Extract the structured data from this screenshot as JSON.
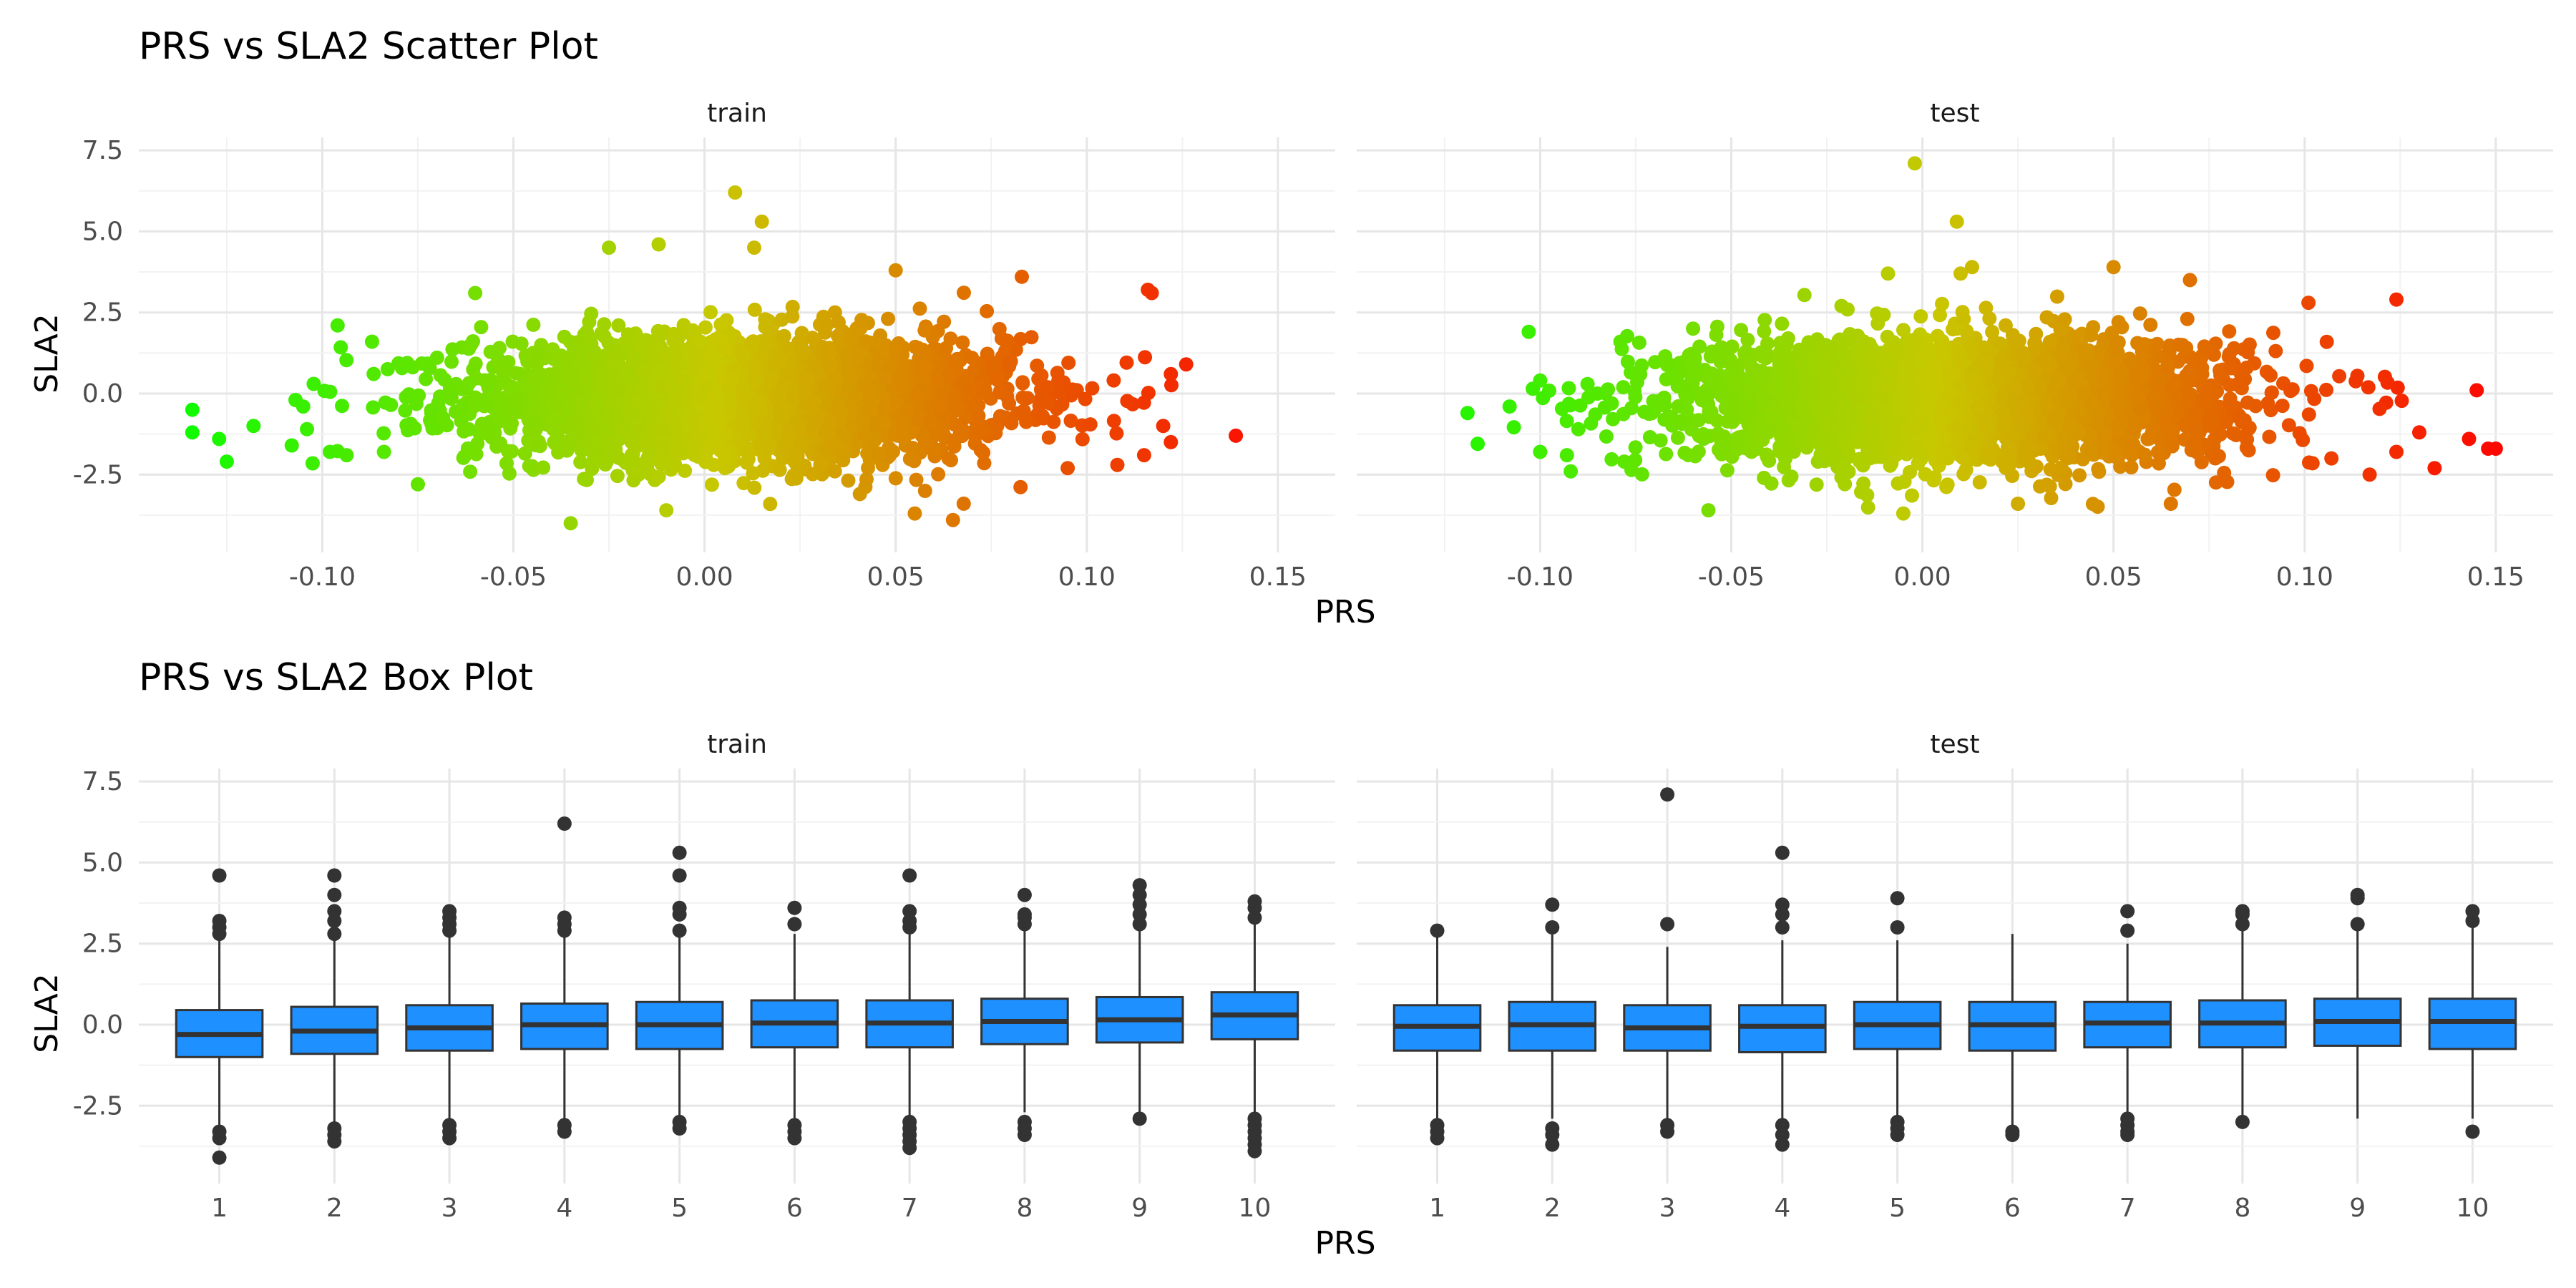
{
  "chart_data": [
    {
      "type": "scatter",
      "title": "PRS vs SLA2 Scatter Plot",
      "xlabel": "PRS",
      "ylabel": "SLA2",
      "facets": [
        "train",
        "test"
      ],
      "xlim": [
        -0.148,
        0.165
      ],
      "ylim": [
        -4.9,
        7.9
      ],
      "xticks": [
        -0.1,
        -0.05,
        0.0,
        0.05,
        0.1,
        0.15
      ],
      "xtick_labels": [
        "-0.10",
        "-0.05",
        "0.00",
        "0.05",
        "0.10",
        "0.15"
      ],
      "yticks": [
        -2.5,
        0.0,
        2.5,
        5.0,
        7.5
      ],
      "ytick_labels": [
        "-2.5",
        "0.0",
        "2.5",
        "5.0",
        "7.5"
      ],
      "grid": true,
      "color_scale": {
        "low": "#00ff00",
        "high": "#ff0000",
        "variable": "PRS"
      },
      "density": {
        "mean_x": 0.01,
        "sd_x": 0.035,
        "sd_y": 0.95
      },
      "series": [
        {
          "facet": "train",
          "outliers": [
            {
              "x": -0.134,
              "y": -0.5
            },
            {
              "x": -0.134,
              "y": -1.2
            },
            {
              "x": -0.125,
              "y": -2.1
            },
            {
              "x": -0.127,
              "y": -1.4
            },
            {
              "x": -0.118,
              "y": -1.0
            },
            {
              "x": -0.107,
              "y": -0.2
            },
            {
              "x": -0.105,
              "y": -0.4
            },
            {
              "x": -0.104,
              "y": -1.1
            },
            {
              "x": -0.108,
              "y": -1.6
            },
            {
              "x": -0.098,
              "y": -1.8
            },
            {
              "x": -0.096,
              "y": 2.1
            },
            {
              "x": -0.087,
              "y": 1.6
            },
            {
              "x": -0.075,
              "y": -2.8
            },
            {
              "x": -0.06,
              "y": 3.1
            },
            {
              "x": -0.025,
              "y": 4.5
            },
            {
              "x": -0.012,
              "y": 4.6
            },
            {
              "x": 0.008,
              "y": 6.2
            },
            {
              "x": 0.015,
              "y": 5.3
            },
            {
              "x": 0.013,
              "y": 4.5
            },
            {
              "x": -0.035,
              "y": -4.0
            },
            {
              "x": -0.01,
              "y": -3.6
            },
            {
              "x": 0.055,
              "y": -3.7
            },
            {
              "x": 0.065,
              "y": -3.9
            },
            {
              "x": 0.05,
              "y": 3.8
            },
            {
              "x": 0.083,
              "y": 3.6
            },
            {
              "x": 0.116,
              "y": 3.2
            },
            {
              "x": 0.117,
              "y": 3.1
            },
            {
              "x": 0.122,
              "y": 0.6
            },
            {
              "x": 0.126,
              "y": 0.9
            },
            {
              "x": 0.12,
              "y": -1.0
            },
            {
              "x": 0.122,
              "y": -1.5
            },
            {
              "x": 0.115,
              "y": -1.9
            },
            {
              "x": 0.139,
              "y": -1.3
            },
            {
              "x": 0.108,
              "y": -2.2
            },
            {
              "x": 0.095,
              "y": -2.3
            }
          ]
        },
        {
          "facet": "test",
          "outliers": [
            {
              "x": -0.119,
              "y": -0.6
            },
            {
              "x": -0.108,
              "y": -0.4
            },
            {
              "x": -0.1,
              "y": 0.4
            },
            {
              "x": -0.1,
              "y": -1.8
            },
            {
              "x": -0.093,
              "y": -1.9
            },
            {
              "x": -0.092,
              "y": -2.4
            },
            {
              "x": -0.09,
              "y": -1.1
            },
            {
              "x": -0.085,
              "y": 0.0
            },
            {
              "x": -0.079,
              "y": 1.6
            },
            {
              "x": -0.078,
              "y": -2.1
            },
            {
              "x": -0.06,
              "y": 2.0
            },
            {
              "x": -0.056,
              "y": -3.6
            },
            {
              "x": -0.005,
              "y": -3.7
            },
            {
              "x": 0.025,
              "y": -3.4
            },
            {
              "x": 0.065,
              "y": -3.4
            },
            {
              "x": -0.002,
              "y": 7.1
            },
            {
              "x": 0.009,
              "y": 5.3
            },
            {
              "x": 0.01,
              "y": 3.7
            },
            {
              "x": 0.013,
              "y": 3.9
            },
            {
              "x": -0.009,
              "y": 3.7
            },
            {
              "x": 0.05,
              "y": 3.9
            },
            {
              "x": 0.07,
              "y": 3.5
            },
            {
              "x": 0.101,
              "y": 2.8
            },
            {
              "x": 0.124,
              "y": 2.9
            },
            {
              "x": 0.145,
              "y": 0.1
            },
            {
              "x": 0.148,
              "y": -1.7
            },
            {
              "x": 0.15,
              "y": -1.7
            },
            {
              "x": 0.143,
              "y": -1.4
            },
            {
              "x": 0.13,
              "y": -1.2
            },
            {
              "x": 0.134,
              "y": -2.3
            },
            {
              "x": 0.117,
              "y": -2.5
            },
            {
              "x": 0.124,
              "y": -1.8
            },
            {
              "x": 0.107,
              "y": -2.0
            }
          ]
        }
      ]
    },
    {
      "type": "box",
      "title": "PRS vs SLA2 Box Plot",
      "xlabel": "PRS",
      "ylabel": "SLA2",
      "facets": [
        "train",
        "test"
      ],
      "categories": [
        "1",
        "2",
        "3",
        "4",
        "5",
        "6",
        "7",
        "8",
        "9",
        "10"
      ],
      "ylim": [
        -4.9,
        7.9
      ],
      "yticks": [
        -2.5,
        0.0,
        2.5,
        5.0,
        7.5
      ],
      "ytick_labels": [
        "-2.5",
        "0.0",
        "2.5",
        "5.0",
        "7.5"
      ],
      "grid": true,
      "fill_color": "#1e90ff",
      "series": [
        {
          "facet": "train",
          "boxes": [
            {
              "q1": -1.0,
              "median": -0.3,
              "q3": 0.45,
              "lower": -3.1,
              "upper": 2.6,
              "outliers": [
                -3.3,
                -3.5,
                -4.1,
                2.8,
                3.0,
                3.2,
                4.6
              ]
            },
            {
              "q1": -0.9,
              "median": -0.2,
              "q3": 0.55,
              "lower": -3.0,
              "upper": 2.7,
              "outliers": [
                -3.2,
                -3.4,
                -3.6,
                2.8,
                3.2,
                3.5,
                4.0,
                4.6
              ]
            },
            {
              "q1": -0.8,
              "median": -0.1,
              "q3": 0.6,
              "lower": -2.9,
              "upper": 2.7,
              "outliers": [
                -3.1,
                -3.3,
                -3.5,
                2.9,
                3.1,
                3.3,
                3.5
              ]
            },
            {
              "q1": -0.75,
              "median": 0.0,
              "q3": 0.65,
              "lower": -2.9,
              "upper": 2.7,
              "outliers": [
                -3.1,
                -3.3,
                2.9,
                3.1,
                3.3,
                6.2
              ]
            },
            {
              "q1": -0.75,
              "median": 0.0,
              "q3": 0.7,
              "lower": -2.8,
              "upper": 2.7,
              "outliers": [
                -3.0,
                -3.2,
                2.9,
                3.4,
                3.6,
                4.6,
                5.3
              ]
            },
            {
              "q1": -0.7,
              "median": 0.05,
              "q3": 0.75,
              "lower": -2.9,
              "upper": 2.8,
              "outliers": [
                -3.1,
                -3.3,
                -3.5,
                3.1,
                3.6
              ]
            },
            {
              "q1": -0.7,
              "median": 0.05,
              "q3": 0.75,
              "lower": -2.8,
              "upper": 2.8,
              "outliers": [
                -3.0,
                -3.2,
                -3.4,
                -3.6,
                -3.8,
                3.0,
                3.2,
                3.5,
                4.6
              ]
            },
            {
              "q1": -0.6,
              "median": 0.1,
              "q3": 0.8,
              "lower": -2.7,
              "upper": 2.9,
              "outliers": [
                -3.0,
                -3.2,
                -3.4,
                3.1,
                3.3,
                3.4,
                4.0
              ]
            },
            {
              "q1": -0.55,
              "median": 0.15,
              "q3": 0.85,
              "lower": -2.7,
              "upper": 2.9,
              "outliers": [
                -2.9,
                3.1,
                3.4,
                3.7,
                4.0,
                4.3
              ]
            },
            {
              "q1": -0.45,
              "median": 0.3,
              "q3": 1.0,
              "lower": -2.7,
              "upper": 3.1,
              "outliers": [
                -2.9,
                -3.1,
                -3.3,
                -3.5,
                -3.7,
                -3.9,
                3.3,
                3.6,
                3.8
              ]
            }
          ]
        },
        {
          "facet": "test",
          "boxes": [
            {
              "q1": -0.8,
              "median": -0.05,
              "q3": 0.6,
              "lower": -2.9,
              "upper": 2.8,
              "outliers": [
                -3.1,
                -3.3,
                -3.5,
                2.9
              ]
            },
            {
              "q1": -0.8,
              "median": 0.0,
              "q3": 0.7,
              "lower": -2.9,
              "upper": 2.8,
              "outliers": [
                -3.2,
                -3.4,
                -3.7,
                3.0,
                3.7
              ]
            },
            {
              "q1": -0.8,
              "median": -0.1,
              "q3": 0.6,
              "lower": -2.9,
              "upper": 2.4,
              "outliers": [
                -3.1,
                -3.3,
                3.1,
                7.1
              ]
            },
            {
              "q1": -0.85,
              "median": -0.05,
              "q3": 0.6,
              "lower": -2.9,
              "upper": 2.6,
              "outliers": [
                -3.1,
                -3.4,
                -3.7,
                3.0,
                3.4,
                3.7,
                5.3
              ]
            },
            {
              "q1": -0.75,
              "median": 0.0,
              "q3": 0.7,
              "lower": -2.8,
              "upper": 2.6,
              "outliers": [
                -3.0,
                -3.2,
                -3.4,
                3.0,
                3.9
              ]
            },
            {
              "q1": -0.8,
              "median": 0.0,
              "q3": 0.7,
              "lower": -3.1,
              "upper": 2.8,
              "outliers": [
                -3.3,
                -3.4
              ]
            },
            {
              "q1": -0.7,
              "median": 0.05,
              "q3": 0.7,
              "lower": -2.8,
              "upper": 2.5,
              "outliers": [
                -2.9,
                -3.1,
                -3.3,
                -3.4,
                2.9,
                3.5
              ]
            },
            {
              "q1": -0.7,
              "median": 0.05,
              "q3": 0.75,
              "lower": -2.8,
              "upper": 2.9,
              "outliers": [
                -3.0,
                3.1,
                3.4,
                3.5
              ]
            },
            {
              "q1": -0.65,
              "median": 0.1,
              "q3": 0.8,
              "lower": -2.9,
              "upper": 2.9,
              "outliers": [
                3.1,
                3.9,
                4.0
              ]
            },
            {
              "q1": -0.75,
              "median": 0.1,
              "q3": 0.8,
              "lower": -2.9,
              "upper": 3.0,
              "outliers": [
                -3.3,
                3.2,
                3.5
              ]
            }
          ]
        }
      ]
    }
  ]
}
